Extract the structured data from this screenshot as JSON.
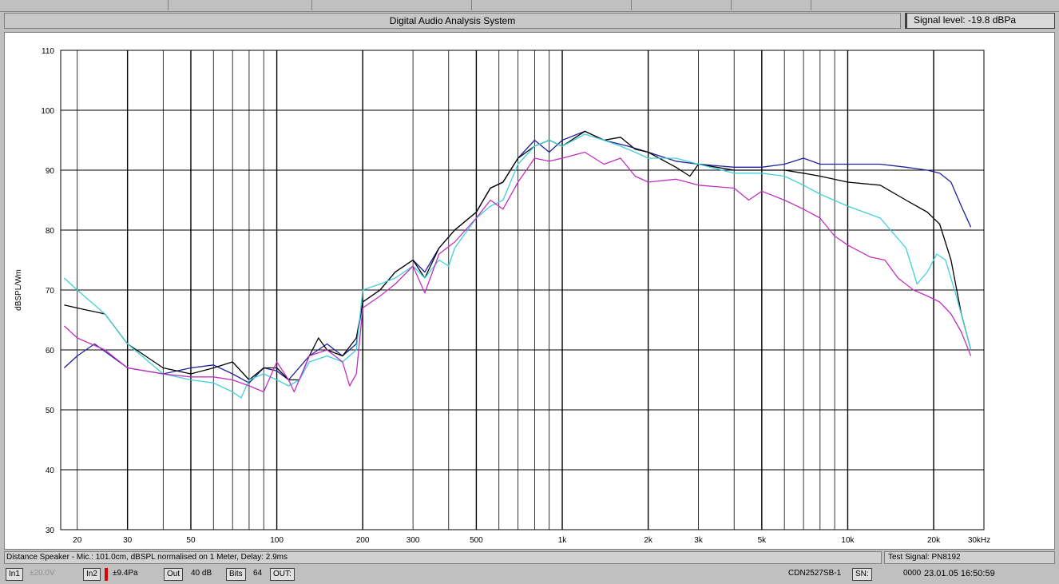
{
  "window": {
    "title": "Digital Audio Analysis System",
    "signal_level": "Signal level: -19.8 dBPa"
  },
  "info": {
    "distance_text": "Distance Speaker - Mic.: 101.0cm, dBSPL normalised on 1 Meter, Delay: 2.9ms",
    "test_signal": "Test Signal: PN8192"
  },
  "statusbar": {
    "in1": "In1",
    "in1_value": "±20.0V",
    "in2": "In2",
    "in2_value": "±9.4Pa",
    "out": "Out",
    "out_value": "40 dB",
    "bits": "Bits",
    "bits_value": "64",
    "outp": "OUT:",
    "device": "CDN2527SB-1",
    "sn": "SN:",
    "sn_value": "0000",
    "datetime": "23.01.05 16:50:59"
  },
  "chart_data": {
    "type": "line",
    "title": "",
    "xlabel": "",
    "ylabel": "dBSPL/Wm",
    "x_scale": "log",
    "xlim": [
      17.5,
      30000
    ],
    "ylim": [
      30,
      110
    ],
    "yticks": [
      30,
      40,
      50,
      60,
      70,
      80,
      90,
      100,
      110
    ],
    "xticks": [
      {
        "value": 20,
        "label": "20"
      },
      {
        "value": 30,
        "label": "30"
      },
      {
        "value": 50,
        "label": "50"
      },
      {
        "value": 100,
        "label": "100"
      },
      {
        "value": 200,
        "label": "200"
      },
      {
        "value": 300,
        "label": "300"
      },
      {
        "value": 500,
        "label": "500"
      },
      {
        "value": 1000,
        "label": "1k"
      },
      {
        "value": 2000,
        "label": "2k"
      },
      {
        "value": 3000,
        "label": "3k"
      },
      {
        "value": 5000,
        "label": "5k"
      },
      {
        "value": 10000,
        "label": "10k"
      },
      {
        "value": 20000,
        "label": "20k"
      },
      {
        "value": 30000,
        "label": "30kHz"
      }
    ],
    "grid": true,
    "series": [
      {
        "color": "#2020a0",
        "points": [
          [
            18,
            57
          ],
          [
            20,
            59
          ],
          [
            23,
            61
          ],
          [
            30,
            57
          ],
          [
            40,
            56
          ],
          [
            50,
            57
          ],
          [
            60,
            57.5
          ],
          [
            70,
            56
          ],
          [
            80,
            54.5
          ],
          [
            90,
            57
          ],
          [
            100,
            56.5
          ],
          [
            110,
            55
          ],
          [
            130,
            59
          ],
          [
            150,
            61
          ],
          [
            170,
            59
          ],
          [
            190,
            61
          ],
          [
            200,
            68
          ],
          [
            230,
            70
          ],
          [
            260,
            73
          ],
          [
            300,
            75
          ],
          [
            330,
            73
          ],
          [
            370,
            77
          ],
          [
            420,
            80
          ],
          [
            500,
            83
          ],
          [
            560,
            87
          ],
          [
            620,
            88
          ],
          [
            700,
            92
          ],
          [
            800,
            95
          ],
          [
            900,
            93
          ],
          [
            1000,
            95
          ],
          [
            1200,
            96.5
          ],
          [
            1400,
            95
          ],
          [
            1700,
            94
          ],
          [
            2000,
            93
          ],
          [
            2500,
            91.5
          ],
          [
            3000,
            91
          ],
          [
            4000,
            90.5
          ],
          [
            5000,
            90.5
          ],
          [
            6000,
            91
          ],
          [
            7000,
            92
          ],
          [
            8000,
            91
          ],
          [
            10000,
            91
          ],
          [
            13000,
            91
          ],
          [
            16000,
            90.5
          ],
          [
            19000,
            90
          ],
          [
            21000,
            89.5
          ],
          [
            23000,
            88
          ],
          [
            25000,
            84
          ],
          [
            27000,
            80.5
          ]
        ]
      },
      {
        "color": "#000000",
        "points": [
          [
            18,
            67.5
          ],
          [
            20,
            67
          ],
          [
            25,
            66
          ],
          [
            30,
            61
          ],
          [
            40,
            57
          ],
          [
            50,
            56
          ],
          [
            60,
            57
          ],
          [
            70,
            58
          ],
          [
            80,
            55
          ],
          [
            90,
            57
          ],
          [
            100,
            57
          ],
          [
            110,
            55
          ],
          [
            120,
            55
          ],
          [
            130,
            59
          ],
          [
            140,
            62
          ],
          [
            150,
            60
          ],
          [
            170,
            59
          ],
          [
            190,
            62
          ],
          [
            200,
            68
          ],
          [
            230,
            70
          ],
          [
            260,
            73
          ],
          [
            300,
            75
          ],
          [
            330,
            72
          ],
          [
            370,
            77
          ],
          [
            420,
            80
          ],
          [
            500,
            83
          ],
          [
            560,
            87
          ],
          [
            620,
            88
          ],
          [
            700,
            92
          ],
          [
            800,
            94
          ],
          [
            900,
            95
          ],
          [
            1000,
            94
          ],
          [
            1200,
            96.5
          ],
          [
            1400,
            95
          ],
          [
            1600,
            95.5
          ],
          [
            1800,
            93.5
          ],
          [
            2000,
            93
          ],
          [
            2500,
            90.5
          ],
          [
            2800,
            89
          ],
          [
            3000,
            91
          ],
          [
            4000,
            90
          ],
          [
            5000,
            90
          ],
          [
            6000,
            90
          ],
          [
            7000,
            89.5
          ],
          [
            8000,
            89
          ],
          [
            10000,
            88
          ],
          [
            13000,
            87.5
          ],
          [
            16000,
            85
          ],
          [
            19000,
            83
          ],
          [
            21000,
            81
          ],
          [
            23000,
            75
          ],
          [
            25000,
            66
          ],
          [
            27000,
            60
          ]
        ]
      },
      {
        "color": "#40d0d8",
        "points": [
          [
            18,
            72
          ],
          [
            20,
            70
          ],
          [
            25,
            66
          ],
          [
            30,
            61
          ],
          [
            40,
            56
          ],
          [
            50,
            55
          ],
          [
            60,
            54.5
          ],
          [
            70,
            53
          ],
          [
            75,
            52
          ],
          [
            80,
            55
          ],
          [
            90,
            56
          ],
          [
            100,
            55
          ],
          [
            110,
            54
          ],
          [
            120,
            55
          ],
          [
            130,
            58
          ],
          [
            150,
            59
          ],
          [
            170,
            58
          ],
          [
            190,
            60
          ],
          [
            200,
            70
          ],
          [
            230,
            71
          ],
          [
            260,
            72
          ],
          [
            300,
            74
          ],
          [
            330,
            72
          ],
          [
            370,
            75
          ],
          [
            400,
            74
          ],
          [
            420,
            77
          ],
          [
            500,
            82
          ],
          [
            560,
            84
          ],
          [
            620,
            85
          ],
          [
            700,
            91
          ],
          [
            800,
            94
          ],
          [
            900,
            95
          ],
          [
            1000,
            94
          ],
          [
            1200,
            96
          ],
          [
            1400,
            95
          ],
          [
            1600,
            94
          ],
          [
            1800,
            93
          ],
          [
            2000,
            92
          ],
          [
            2500,
            92
          ],
          [
            3000,
            91
          ],
          [
            4000,
            89.5
          ],
          [
            5000,
            89.5
          ],
          [
            6000,
            89
          ],
          [
            7000,
            87.5
          ],
          [
            8000,
            86
          ],
          [
            10000,
            84
          ],
          [
            13000,
            82
          ],
          [
            16000,
            77
          ],
          [
            17500,
            71
          ],
          [
            19000,
            73
          ],
          [
            20500,
            76
          ],
          [
            22000,
            75
          ],
          [
            24000,
            69
          ],
          [
            27000,
            60
          ]
        ]
      },
      {
        "color": "#c030c0",
        "points": [
          [
            18,
            64
          ],
          [
            20,
            62
          ],
          [
            25,
            60
          ],
          [
            30,
            57
          ],
          [
            40,
            56
          ],
          [
            50,
            55.5
          ],
          [
            60,
            55.5
          ],
          [
            70,
            55
          ],
          [
            80,
            54
          ],
          [
            90,
            53
          ],
          [
            100,
            58
          ],
          [
            110,
            55
          ],
          [
            115,
            53
          ],
          [
            130,
            59
          ],
          [
            150,
            60
          ],
          [
            170,
            58
          ],
          [
            180,
            54
          ],
          [
            190,
            56
          ],
          [
            200,
            67
          ],
          [
            230,
            69
          ],
          [
            260,
            71
          ],
          [
            300,
            74
          ],
          [
            330,
            69.5
          ],
          [
            370,
            76
          ],
          [
            420,
            78
          ],
          [
            500,
            82
          ],
          [
            560,
            85
          ],
          [
            620,
            83.5
          ],
          [
            700,
            88
          ],
          [
            800,
            92
          ],
          [
            900,
            91.5
          ],
          [
            1000,
            92
          ],
          [
            1200,
            93
          ],
          [
            1400,
            91
          ],
          [
            1600,
            92
          ],
          [
            1800,
            89
          ],
          [
            2000,
            88
          ],
          [
            2500,
            88.5
          ],
          [
            3000,
            87.5
          ],
          [
            4000,
            87
          ],
          [
            4500,
            85
          ],
          [
            5000,
            86.5
          ],
          [
            6000,
            85
          ],
          [
            7000,
            83.5
          ],
          [
            8000,
            82
          ],
          [
            9000,
            79
          ],
          [
            10000,
            77.5
          ],
          [
            12000,
            75.5
          ],
          [
            13500,
            75
          ],
          [
            15000,
            72
          ],
          [
            17000,
            70
          ],
          [
            19000,
            69
          ],
          [
            21000,
            68
          ],
          [
            23000,
            66
          ],
          [
            25000,
            63
          ],
          [
            27000,
            59
          ]
        ]
      }
    ]
  }
}
